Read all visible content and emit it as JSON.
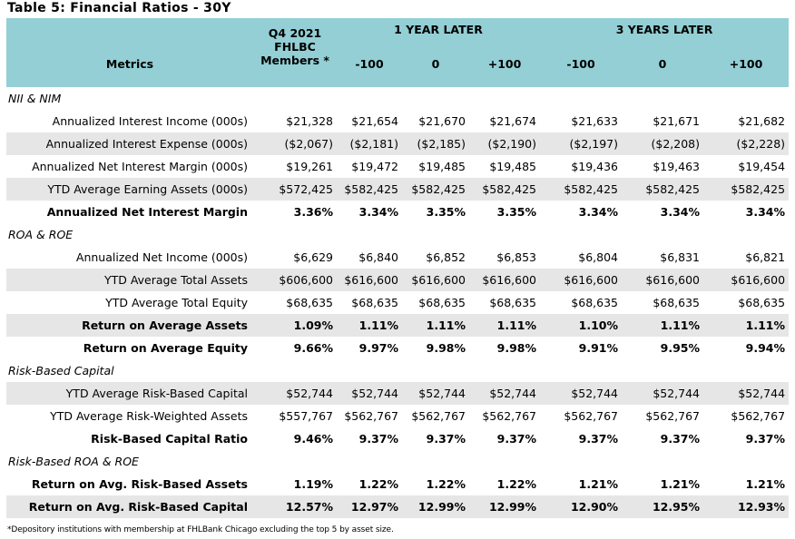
{
  "title": "Table 5: Financial Ratios - 30Y",
  "header": {
    "q4_label": "Q4 2021",
    "fhlbc_label": "FHLBC Members *",
    "one_year_label": "1 YEAR LATER",
    "three_years_label": "3 YEARS LATER",
    "metrics_label": "Metrics",
    "shocks": [
      "-100",
      "0",
      "+100",
      "-100",
      "0",
      "+100"
    ]
  },
  "sections": {
    "nii": "NII & NIM",
    "roa": "ROA & ROE",
    "rbc": "Risk-Based Capital",
    "rbroa": "Risk-Based ROA & ROE"
  },
  "rows": [
    {
      "label": "Annualized Interest Income (000s)",
      "values": [
        "$21,328",
        "$21,654",
        "$21,670",
        "$21,674",
        "$21,633",
        "$21,671",
        "$21,682"
      ]
    },
    {
      "label": "Annualized Interest Expense (000s)",
      "values": [
        "($2,067)",
        "($2,181)",
        "($2,185)",
        "($2,190)",
        "($2,197)",
        "($2,208)",
        "($2,228)"
      ]
    },
    {
      "label": "Annualized Net Interest Margin (000s)",
      "values": [
        "$19,261",
        "$19,472",
        "$19,485",
        "$19,485",
        "$19,436",
        "$19,463",
        "$19,454"
      ]
    },
    {
      "label": "YTD Average Earning Assets (000s)",
      "values": [
        "$572,425",
        "$582,425",
        "$582,425",
        "$582,425",
        "$582,425",
        "$582,425",
        "$582,425"
      ]
    },
    {
      "label": "Annualized Net Interest Margin",
      "values": [
        "3.36%",
        "3.34%",
        "3.35%",
        "3.35%",
        "3.34%",
        "3.34%",
        "3.34%"
      ]
    },
    {
      "label": "Annualized Net Income (000s)",
      "values": [
        "$6,629",
        "$6,840",
        "$6,852",
        "$6,853",
        "$6,804",
        "$6,831",
        "$6,821"
      ]
    },
    {
      "label": "YTD Average Total Assets",
      "values": [
        "$606,600",
        "$616,600",
        "$616,600",
        "$616,600",
        "$616,600",
        "$616,600",
        "$616,600"
      ]
    },
    {
      "label": "YTD Average Total Equity",
      "values": [
        "$68,635",
        "$68,635",
        "$68,635",
        "$68,635",
        "$68,635",
        "$68,635",
        "$68,635"
      ]
    },
    {
      "label": "Return on Average Assets",
      "values": [
        "1.09%",
        "1.11%",
        "1.11%",
        "1.11%",
        "1.10%",
        "1.11%",
        "1.11%"
      ]
    },
    {
      "label": "Return on Average Equity",
      "values": [
        "9.66%",
        "9.97%",
        "9.98%",
        "9.98%",
        "9.91%",
        "9.95%",
        "9.94%"
      ]
    },
    {
      "label": "YTD Average Risk-Based Capital",
      "values": [
        "$52,744",
        "$52,744",
        "$52,744",
        "$52,744",
        "$52,744",
        "$52,744",
        "$52,744"
      ]
    },
    {
      "label": "YTD Average Risk-Weighted Assets",
      "values": [
        "$557,767",
        "$562,767",
        "$562,767",
        "$562,767",
        "$562,767",
        "$562,767",
        "$562,767"
      ]
    },
    {
      "label": "Risk-Based Capital Ratio",
      "values": [
        "9.46%",
        "9.37%",
        "9.37%",
        "9.37%",
        "9.37%",
        "9.37%",
        "9.37%"
      ]
    },
    {
      "label": "Return on Avg. Risk-Based Assets",
      "values": [
        "1.19%",
        "1.22%",
        "1.22%",
        "1.22%",
        "1.21%",
        "1.21%",
        "1.21%"
      ]
    },
    {
      "label": "Return on Avg. Risk-Based Capital",
      "values": [
        "12.57%",
        "12.97%",
        "12.99%",
        "12.99%",
        "12.90%",
        "12.95%",
        "12.93%"
      ]
    }
  ],
  "footnote": "*Depository institutions with membership at FHLBank Chicago excluding the top 5 by asset size."
}
